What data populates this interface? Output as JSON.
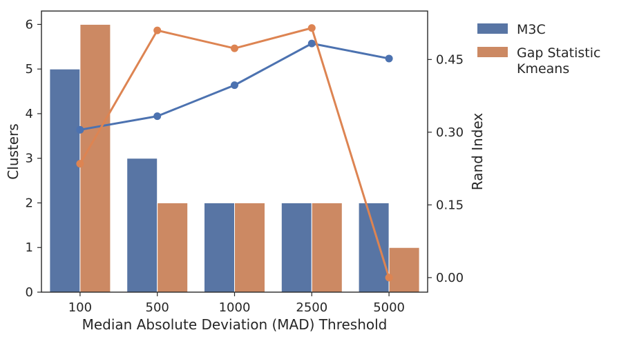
{
  "chart_data": {
    "type": "bar",
    "title": "",
    "xlabel": "Median Absolute Deviation (MAD) Threshold",
    "ylabel": "Clusters",
    "y2label": "Rand Index",
    "categories": [
      "100",
      "500",
      "1000",
      "2500",
      "5000"
    ],
    "ylim": [
      0,
      6.3
    ],
    "yticks": [
      0,
      1,
      2,
      3,
      4,
      5,
      6
    ],
    "y2lim": [
      -0.03,
      0.55
    ],
    "y2ticks": [
      "0.00",
      "0.15",
      "0.30",
      "0.45"
    ],
    "grid": false,
    "legend_position": "outside-top-right",
    "bar_series": [
      {
        "legend": "M3C",
        "color": "#5875a4",
        "values": [
          5,
          3,
          2,
          2,
          2
        ]
      },
      {
        "legend": "Gap Statistic\nKmeans",
        "color": "#cc8963",
        "values": [
          6,
          2,
          2,
          2,
          1
        ]
      }
    ],
    "line_series": [
      {
        "color": "#4c72b0",
        "values": [
          0.305,
          0.333,
          0.397,
          0.483,
          0.452
        ]
      },
      {
        "color": "#dd8452",
        "values": [
          0.235,
          0.51,
          0.473,
          0.515,
          0.0
        ]
      }
    ]
  }
}
